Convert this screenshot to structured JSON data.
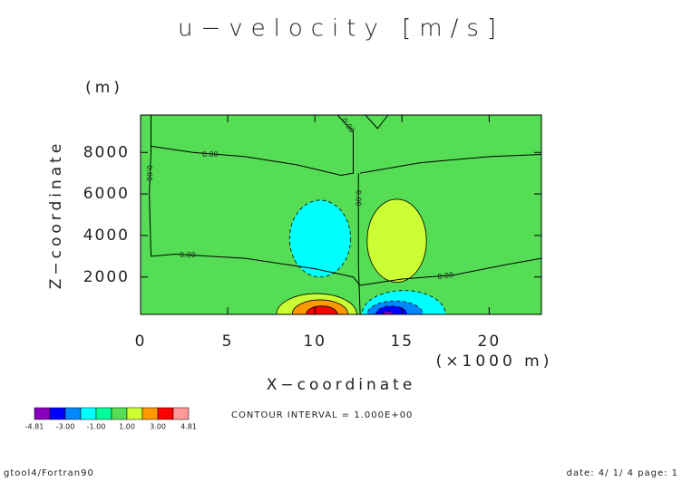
{
  "chart_data": {
    "type": "contour",
    "title": "u−velocity [m/s]",
    "y_unit": "(m)",
    "y_label": "Z−coordinate",
    "x_label": "X−coordinate",
    "x_unit": "(×1000 m)",
    "xlim": [
      0,
      23
    ],
    "ylim": [
      200,
      9800
    ],
    "xticks": [
      0,
      5,
      10,
      15,
      20
    ],
    "yticks": [
      2000,
      4000,
      6000,
      8000
    ],
    "background": {
      "level": 0,
      "color": "#55dd55"
    },
    "regions": [
      {
        "level": 1,
        "color": "#ccff33",
        "cx": 10.1,
        "cz": 200,
        "rx": 2.3,
        "rz": 1000
      },
      {
        "level": 2,
        "color": "#ff9900",
        "cx": 10.3,
        "cz": 200,
        "rx": 1.6,
        "rz": 700
      },
      {
        "level": 3,
        "color": "#ff0000",
        "cx": 10.4,
        "cz": 200,
        "rx": 0.9,
        "rz": 400
      },
      {
        "level": -1,
        "color": "#00ffff",
        "cx": 15.1,
        "cz": 200,
        "rx": 2.4,
        "rz": 1150
      },
      {
        "level": -2,
        "color": "#0088ff",
        "cx": 14.6,
        "cz": 200,
        "rx": 1.6,
        "rz": 650
      },
      {
        "level": -3,
        "color": "#0000ff",
        "cx": 14.4,
        "cz": 200,
        "rx": 0.9,
        "rz": 400
      },
      {
        "level": -4,
        "color": "#8800bb",
        "cx": 14.2,
        "cz": 200,
        "rx": 0.3,
        "rz": 150
      },
      {
        "level": -1,
        "color": "#00ffff",
        "cx": 10.3,
        "cz": 3850,
        "rx": 1.75,
        "rz": 1850
      },
      {
        "level": 1,
        "color": "#ccff33",
        "cx": 14.7,
        "cz": 3750,
        "rx": 1.7,
        "rz": 2000
      }
    ],
    "contours": [
      {
        "level": 0,
        "x": [
          0.6,
          0.6,
          0.5,
          0.6,
          2,
          6,
          10,
          12.2,
          12.6
        ],
        "z": [
          9800,
          8000,
          6000,
          3000,
          3100,
          2900,
          2400,
          2000,
          1600
        ]
      },
      {
        "level": 0,
        "x": [
          0.6,
          3,
          6,
          9,
          11.5,
          12.2,
          12.2,
          11.3
        ],
        "z": [
          8300,
          8000,
          7800,
          7400,
          6900,
          7000,
          9000,
          9800
        ]
      },
      {
        "level": 0,
        "x": [
          12.6,
          12.5,
          12.5,
          12.5
        ],
        "z": [
          200,
          2500,
          5000,
          7000
        ]
      },
      {
        "level": 0,
        "x": [
          12.6,
          16,
          20,
          23
        ],
        "z": [
          7000,
          7500,
          7800,
          7900
        ]
      },
      {
        "level": 0,
        "x": [
          12.6,
          15,
          18,
          21,
          23
        ],
        "z": [
          1600,
          1900,
          2100,
          2600,
          2900
        ]
      },
      {
        "level": 0,
        "x": [
          12.9,
          13.6,
          14.2
        ],
        "z": [
          9800,
          9150,
          9800
        ]
      }
    ],
    "contour_labels": [
      {
        "text": "0.00",
        "x": 0.5,
        "z": 7000,
        "angle": 90
      },
      {
        "text": "0.00",
        "x": 4,
        "z": 7900,
        "angle": 0
      },
      {
        "text": "0.00",
        "x": 11.9,
        "z": 9300,
        "angle": 55
      },
      {
        "text": "0.00",
        "x": 12.5,
        "z": 5800,
        "angle": 90
      },
      {
        "text": "0.00",
        "x": 2.7,
        "z": 3050,
        "angle": 0
      },
      {
        "text": "0.00",
        "x": 17.5,
        "z": 2050,
        "angle": -8
      }
    ],
    "colorbar": {
      "colors": [
        "#8800bb",
        "#0000ff",
        "#0088ff",
        "#00ffff",
        "#00ff99",
        "#55dd55",
        "#ccff33",
        "#ff9900",
        "#ff0000",
        "#ff9999"
      ],
      "labels": [
        "-4.81",
        "-3.00",
        "-1.00",
        "1.00",
        "3.00",
        "4.81"
      ]
    },
    "contour_interval": "CONTOUR INTERVAL = 1.000E+00",
    "footer_left": "gtool4/Fortran90",
    "footer_right": "date: 4/ 1/ 4 page: 1"
  }
}
